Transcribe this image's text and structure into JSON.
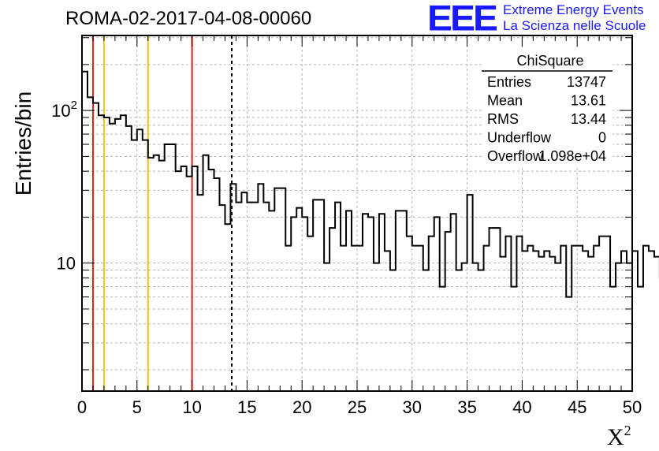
{
  "header": {
    "title": "ROMA-02-2017-04-08-00060",
    "logo": "EEE",
    "logo_line1": "Extreme Energy Events",
    "logo_line2": "La Scienza nelle Scuole"
  },
  "axes": {
    "ylabel": "Entries/bin",
    "xlabel_base": "X",
    "xlabel_sup": "2"
  },
  "stats_box": {
    "title": "ChiSquare",
    "rows": [
      {
        "label": "Entries",
        "value": "13747"
      },
      {
        "label": "Mean",
        "value": "13.61"
      },
      {
        "label": "RMS",
        "value": "13.44"
      },
      {
        "label": "Underflow",
        "value": "0"
      },
      {
        "label": "Overflow",
        "value": "1.098e+04"
      }
    ]
  },
  "colors": {
    "histogram": "#000000",
    "red_line": "#e3211c",
    "yellow_line": "#f2c316",
    "grid": "#b4b4b4"
  },
  "chart_data": {
    "type": "histogram",
    "title": "ROMA-02-2017-04-08-00060",
    "xlabel": "X²",
    "ylabel": "Entries/bin",
    "xlim": [
      0,
      50
    ],
    "ylim": [
      1.45,
      310
    ],
    "yscale": "log",
    "grid": true,
    "bin_width": 0.5,
    "x_ticks": [
      0,
      5,
      10,
      15,
      20,
      25,
      30,
      35,
      40,
      45,
      50
    ],
    "y_tick_labels": [
      {
        "value": 10,
        "label": "10"
      },
      {
        "value": 100,
        "label": "10^2"
      }
    ],
    "values": [
      180,
      122,
      112,
      93,
      90,
      82,
      88,
      93,
      79,
      64,
      75,
      64,
      49,
      51,
      47,
      60,
      60,
      40,
      43,
      37,
      43,
      28,
      51,
      41,
      36,
      24,
      18,
      33,
      25,
      29,
      25,
      25,
      33,
      25,
      22,
      31,
      31,
      13,
      20,
      23,
      20,
      15,
      26,
      26,
      10,
      17,
      25,
      13,
      22,
      13,
      13,
      21,
      20,
      10,
      21,
      12,
      9,
      22,
      22,
      15,
      13,
      13,
      9,
      15,
      20,
      7,
      16,
      21,
      9,
      10,
      28,
      10,
      9,
      13,
      17,
      17,
      11,
      15,
      7,
      15,
      12,
      13,
      12,
      11,
      12,
      11,
      10,
      13,
      6,
      13,
      13,
      12,
      11,
      13,
      15,
      15,
      7,
      10,
      12,
      10,
      12,
      7,
      13,
      12,
      11,
      8,
      15,
      14,
      13,
      11,
      3.5,
      13,
      8,
      12,
      10,
      9,
      12,
      17,
      10,
      20,
      14,
      17,
      9,
      22,
      9,
      4.2,
      10,
      14,
      18,
      9,
      14,
      15,
      18,
      12,
      11,
      13,
      12,
      9,
      9,
      3.2,
      9,
      12,
      14,
      10,
      15,
      6,
      15,
      11,
      11,
      8,
      7,
      14,
      12,
      11,
      14,
      10,
      9,
      12,
      12,
      13,
      20,
      14,
      11,
      14,
      10,
      3.3,
      11,
      14,
      13,
      7,
      18,
      11,
      12,
      8,
      7,
      13,
      12,
      13,
      18,
      8,
      12,
      9,
      15,
      11,
      11,
      13,
      10,
      8,
      12,
      16,
      11,
      11,
      9,
      16,
      12,
      9,
      12,
      13,
      16,
      16,
      14,
      9,
      11,
      18,
      11,
      14,
      9,
      11,
      14,
      13,
      16,
      15,
      18,
      10,
      14,
      10,
      17,
      10,
      15,
      12,
      11,
      11,
      14,
      22,
      13,
      11,
      12,
      14,
      15,
      19,
      16,
      12,
      10,
      11,
      16,
      12,
      10,
      9,
      16,
      7,
      12,
      12,
      9,
      12,
      11,
      11,
      14,
      13,
      13,
      8,
      17,
      12,
      10,
      11,
      12,
      12,
      11,
      13,
      9,
      10,
      12,
      11,
      13,
      10,
      12,
      9,
      10,
      12,
      11,
      12,
      11,
      12,
      10,
      11,
      12,
      10,
      11,
      12,
      11
    ],
    "vertical_lines": [
      {
        "x": 1,
        "color": "red"
      },
      {
        "x": 2,
        "color": "yellow"
      },
      {
        "x": 6,
        "color": "yellow"
      },
      {
        "x": 10,
        "color": "red"
      },
      {
        "x": 13.61,
        "color": "black",
        "style": "dashed"
      }
    ]
  }
}
